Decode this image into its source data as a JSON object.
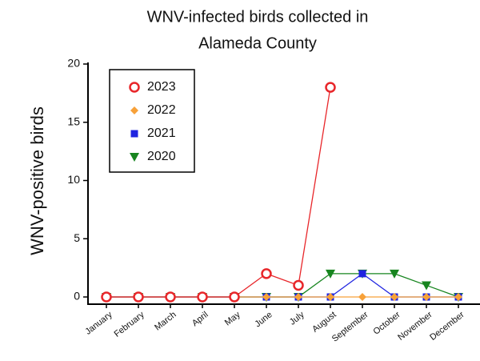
{
  "chart_data": {
    "type": "line",
    "title": "WNV-infected birds collected in Alameda County",
    "title_lines": [
      "WNV-infected birds collected in",
      "Alameda County"
    ],
    "y_label": "WNV-positive birds",
    "categories": [
      "January",
      "February",
      "March",
      "April",
      "May",
      "June",
      "July",
      "August",
      "September",
      "October",
      "November",
      "December"
    ],
    "series": [
      {
        "name": "2023",
        "color": "#e8262a",
        "marker": "circle",
        "values": [
          0,
          0,
          0,
          0,
          0,
          2,
          1,
          18,
          null,
          null,
          null,
          null
        ]
      },
      {
        "name": "2022",
        "color": "#f7a139",
        "marker": "diamond",
        "values": [
          0,
          0,
          0,
          0,
          0,
          0,
          0,
          0,
          0,
          0,
          0,
          0
        ]
      },
      {
        "name": "2021",
        "color": "#1f24e0",
        "marker": "square",
        "values": [
          0,
          0,
          0,
          0,
          0,
          0,
          0,
          0,
          2,
          0,
          0,
          0
        ]
      },
      {
        "name": "2020",
        "color": "#17851f",
        "marker": "triangle-down",
        "values": [
          0,
          0,
          0,
          0,
          0,
          0,
          0,
          2,
          2,
          2,
          1,
          0
        ]
      }
    ],
    "ylim": [
      0,
      20
    ],
    "yticks": [
      0,
      5,
      10,
      15,
      20
    ],
    "legend": "upper left"
  }
}
